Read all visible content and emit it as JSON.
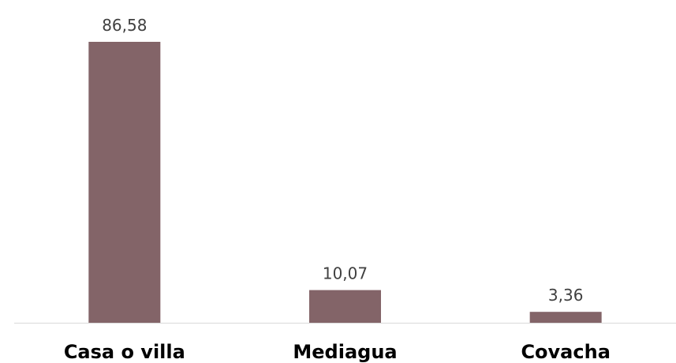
{
  "chart_data": {
    "type": "bar",
    "categories": [
      "Casa o villa",
      "Mediagua",
      "Covacha"
    ],
    "values": [
      86.58,
      10.07,
      3.36
    ],
    "value_labels": [
      "86,58",
      "10,07",
      "3,36"
    ],
    "title": "",
    "xlabel": "",
    "ylabel": "",
    "ylim": [
      0,
      86.58
    ],
    "grid": false,
    "legend": "none",
    "bar_color": "#836468",
    "axis_color": "#d9d9d9"
  }
}
